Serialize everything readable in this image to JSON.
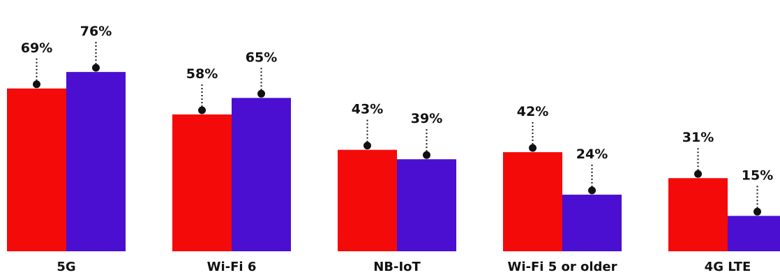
{
  "chart_data": {
    "type": "bar",
    "categories": [
      "5G",
      "Wi-Fi 6",
      "NB-IoT",
      "Wi-Fi 5 or older",
      "4G LTE"
    ],
    "series": [
      {
        "values": [
          69,
          58,
          43,
          42,
          31
        ],
        "color": "#f50a0a"
      },
      {
        "values": [
          76,
          65,
          39,
          24,
          15
        ],
        "color": "#4b0fd2"
      }
    ],
    "value_suffix": "%",
    "ylim": [
      0,
      100
    ],
    "grid": false,
    "legend": "none"
  }
}
